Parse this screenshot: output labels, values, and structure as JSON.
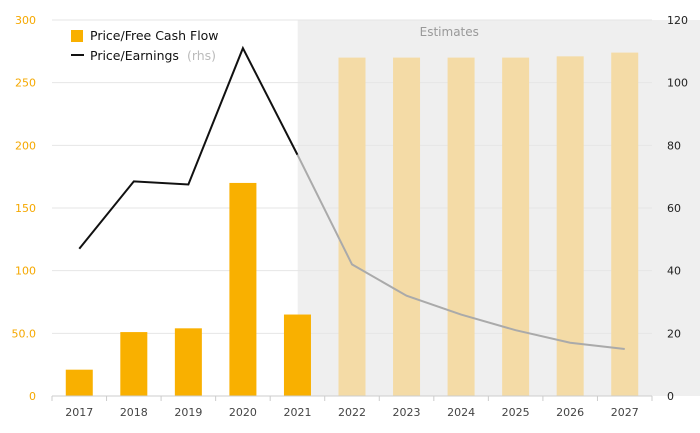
{
  "chart_data": {
    "type": "bar+line",
    "categories": [
      "2017",
      "2018",
      "2019",
      "2020",
      "2021",
      "2022",
      "2023",
      "2024",
      "2025",
      "2026",
      "2027"
    ],
    "estimates_from": "2022",
    "estimates_label": "Estimates",
    "series": [
      {
        "name": "Price/Free Cash Flow",
        "kind": "bar",
        "axis": "left",
        "color": "#f9b000",
        "estimate_color": "#f4dba6",
        "values": [
          21,
          51,
          54,
          170,
          65,
          270,
          270,
          270,
          270,
          271,
          274
        ]
      },
      {
        "name": "Price/Earnings",
        "name_suffix": "(rhs)",
        "kind": "line",
        "axis": "right",
        "color": "#111111",
        "estimate_color": "#aaaaaa",
        "values": [
          47,
          68.5,
          67.5,
          111,
          77,
          42,
          32,
          26,
          21,
          17,
          15
        ]
      }
    ],
    "y_left": {
      "ylim": [
        0,
        300
      ],
      "ticks": [
        0,
        50,
        100,
        150,
        200,
        250,
        300
      ],
      "tick_labels": [
        "0",
        "50.0",
        "100",
        "150",
        "200",
        "250",
        "300"
      ],
      "color": "#f5a800"
    },
    "y_right": {
      "ylim": [
        0,
        120
      ],
      "ticks": [
        0,
        20,
        40,
        60,
        80,
        100,
        120
      ],
      "tick_labels": [
        "0",
        "20",
        "40",
        "60",
        "80",
        "100",
        "120"
      ]
    },
    "grid": true,
    "legend": "top-left",
    "estimates_shade": "#efefef"
  }
}
